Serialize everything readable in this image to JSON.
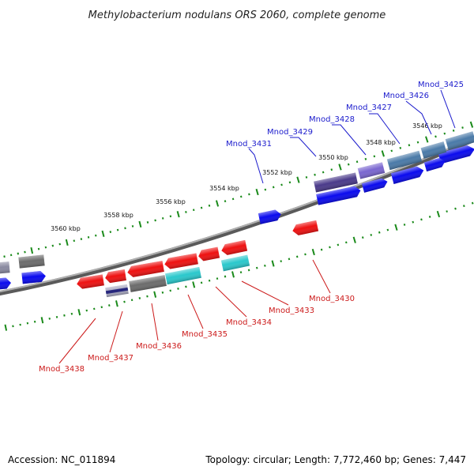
{
  "header": {
    "title": "Methylobacterium nodulans ORS 2060, complete genome"
  },
  "footer": {
    "accession": "Accession: NC_011894",
    "summary": "Topology: circular; Length: 7,772,460 bp; Genes: 7,447"
  },
  "scale_labels": [
    "3546 kbp",
    "3548 kbp",
    "3550 kbp",
    "3552 kbp",
    "3554 kbp",
    "3556 kbp",
    "3558 kbp",
    "3560 kbp"
  ],
  "forward_labels": [
    "Mnod_3425",
    "Mnod_3426",
    "Mnod_3427",
    "Mnod_3428",
    "Mnod_3429",
    "Mnod_3431"
  ],
  "reverse_labels": [
    "Mnod_3430",
    "Mnod_3433",
    "Mnod_3434",
    "Mnod_3435",
    "Mnod_3436",
    "Mnod_3437",
    "Mnod_3438"
  ],
  "colors": {
    "forward_gene": "#0a0aee",
    "reverse_gene": "#ee1111",
    "backbone": "#808080",
    "tick": "#1a8a1a",
    "forward_label": "#1a1acc",
    "reverse_label": "#cc1a1a",
    "cog_gray": "#6c6c6c",
    "cog_cyan": "#2ac8cc",
    "cog_steel": "#4a7aa8",
    "cog_indigo": "#4a3a8a",
    "cog_violet": "#7a66d0"
  }
}
